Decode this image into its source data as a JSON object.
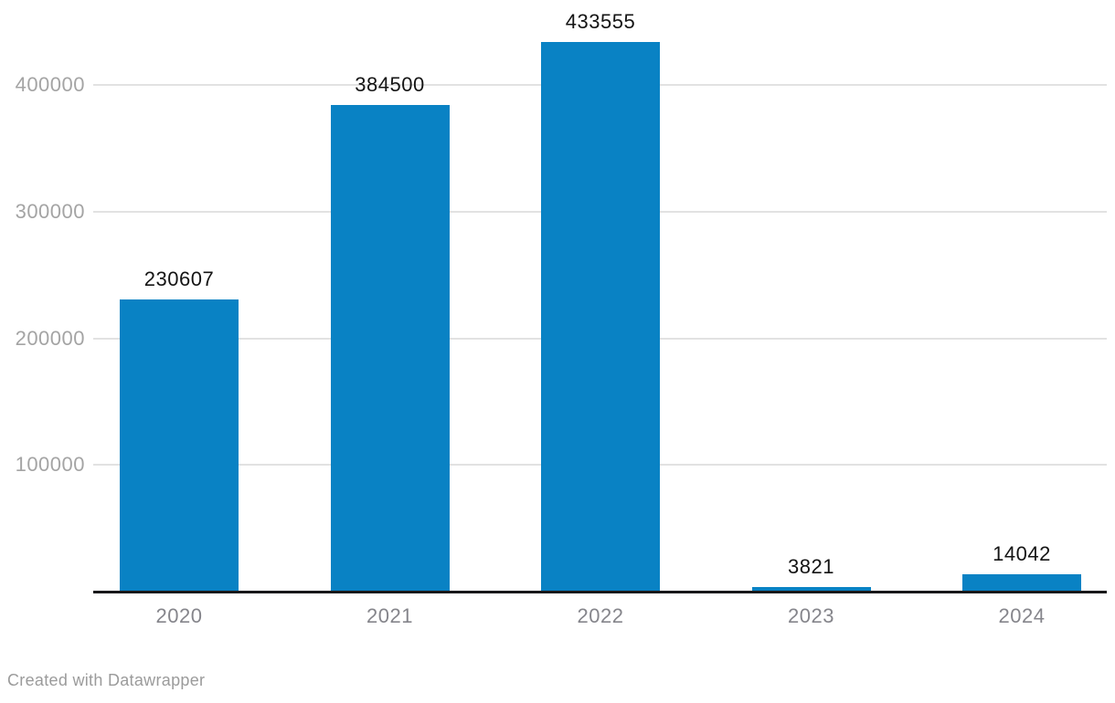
{
  "chart_data": {
    "type": "bar",
    "title": "",
    "xlabel": "",
    "ylabel": "",
    "categories": [
      "2020",
      "2021",
      "2022",
      "2023",
      "2024"
    ],
    "values": [
      230607,
      384500,
      433555,
      3821,
      14042
    ],
    "value_labels": [
      "230607",
      "384500",
      "433555",
      "3821",
      "14042"
    ],
    "yticks": [
      100000,
      200000,
      300000,
      400000
    ],
    "ytick_labels": [
      "100000",
      "200000",
      "300000",
      "400000"
    ],
    "ylim": [
      0,
      450000
    ],
    "grid": "horizontal",
    "legend": "none"
  },
  "footer": {
    "credit": "Created with Datawrapper"
  },
  "colors": {
    "bar": "#0982c4",
    "gridline": "#e2e2e2",
    "axis_line": "#18181a",
    "ytick_text": "#a4a4a4",
    "xtick_text": "#85858b",
    "value_text": "#141414",
    "credit_text": "#9b9b9b",
    "background": "#ffffff"
  }
}
